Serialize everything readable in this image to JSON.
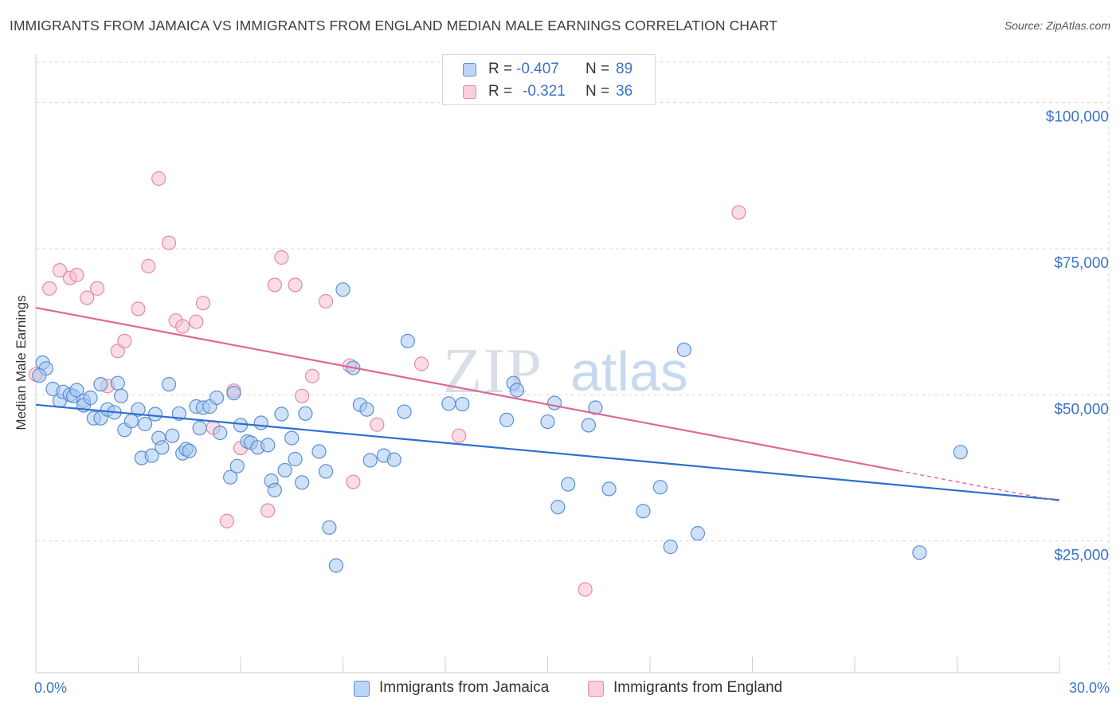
{
  "title": "IMMIGRANTS FROM JAMAICA VS IMMIGRANTS FROM ENGLAND MEDIAN MALE EARNINGS CORRELATION CHART",
  "source": "Source: ZipAtlas.com",
  "watermark": {
    "zip": "ZIP",
    "atlas": "atlas"
  },
  "legend": {
    "r_label": "R =",
    "n_label": "N =",
    "rows": [
      {
        "r": "-0.407",
        "n": "89"
      },
      {
        "r": "-0.321",
        "n": "36"
      }
    ]
  },
  "colors": {
    "blue_fill": "#a8c8f0",
    "blue_stroke": "#5b8fd6",
    "blue_line": "#2e6fd0",
    "pink_fill": "#f6bfd0",
    "pink_stroke": "#e58aa6",
    "pink_line": "#e06890",
    "axis_text": "#3b73c8",
    "grid": "#d8d8d8"
  },
  "chart_data": {
    "type": "scatter",
    "title": "IMMIGRANTS FROM JAMAICA VS IMMIGRANTS FROM ENGLAND MEDIAN MALE EARNINGS CORRELATION CHART",
    "xlabel": "",
    "ylabel": "Median Male Earnings",
    "xlim": [
      0,
      30
    ],
    "ylim": [
      3000,
      108000
    ],
    "x_tick_labels": [
      "0.0%",
      "30.0%"
    ],
    "y_ticks": [
      25000,
      50000,
      75000,
      100000
    ],
    "y_tick_labels": [
      "$25,000",
      "$50,000",
      "$75,000",
      "$100,000"
    ],
    "grid": true,
    "series": [
      {
        "name": "Immigrants from Jamaica",
        "color": "blue",
        "trend": {
          "x": [
            0,
            30
          ],
          "y": [
            48300,
            32000
          ]
        },
        "points": [
          [
            0.2,
            55500
          ],
          [
            0.3,
            54500
          ],
          [
            0.5,
            51000
          ],
          [
            0.7,
            49000
          ],
          [
            0.8,
            50500
          ],
          [
            1.0,
            50000
          ],
          [
            1.1,
            49800
          ],
          [
            1.2,
            50800
          ],
          [
            1.4,
            49000
          ],
          [
            1.4,
            48200
          ],
          [
            1.6,
            49500
          ],
          [
            1.7,
            46000
          ],
          [
            1.9,
            46000
          ],
          [
            1.9,
            51800
          ],
          [
            2.1,
            47500
          ],
          [
            2.3,
            47000
          ],
          [
            2.4,
            52000
          ],
          [
            2.5,
            49800
          ],
          [
            2.6,
            44000
          ],
          [
            2.8,
            45500
          ],
          [
            3.0,
            47500
          ],
          [
            3.1,
            39200
          ],
          [
            3.2,
            45000
          ],
          [
            3.4,
            39600
          ],
          [
            3.5,
            46700
          ],
          [
            3.6,
            42600
          ],
          [
            3.7,
            41000
          ],
          [
            3.9,
            51800
          ],
          [
            4.0,
            43000
          ],
          [
            4.2,
            46800
          ],
          [
            4.3,
            40000
          ],
          [
            4.4,
            40700
          ],
          [
            4.5,
            40400
          ],
          [
            4.7,
            48000
          ],
          [
            4.8,
            44300
          ],
          [
            4.9,
            47800
          ],
          [
            5.1,
            48000
          ],
          [
            5.3,
            49500
          ],
          [
            5.4,
            43500
          ],
          [
            5.7,
            35900
          ],
          [
            5.8,
            50300
          ],
          [
            5.9,
            37800
          ],
          [
            6.0,
            44800
          ],
          [
            6.2,
            42000
          ],
          [
            6.3,
            41800
          ],
          [
            6.5,
            41000
          ],
          [
            6.6,
            45200
          ],
          [
            6.8,
            41400
          ],
          [
            6.9,
            35300
          ],
          [
            7.0,
            33700
          ],
          [
            7.2,
            46700
          ],
          [
            7.3,
            37100
          ],
          [
            7.5,
            42600
          ],
          [
            7.6,
            39000
          ],
          [
            7.8,
            35000
          ],
          [
            7.9,
            46800
          ],
          [
            8.3,
            40300
          ],
          [
            8.5,
            36900
          ],
          [
            8.6,
            27300
          ],
          [
            8.8,
            20800
          ],
          [
            9.0,
            68000
          ],
          [
            9.3,
            54600
          ],
          [
            9.5,
            48300
          ],
          [
            9.7,
            47500
          ],
          [
            9.8,
            38800
          ],
          [
            10.2,
            39600
          ],
          [
            10.5,
            38900
          ],
          [
            10.8,
            47100
          ],
          [
            10.9,
            59200
          ],
          [
            12.1,
            48500
          ],
          [
            12.5,
            48400
          ],
          [
            13.8,
            45700
          ],
          [
            14.0,
            52000
          ],
          [
            14.1,
            50800
          ],
          [
            15.0,
            45400
          ],
          [
            15.2,
            48600
          ],
          [
            15.3,
            30800
          ],
          [
            15.6,
            34700
          ],
          [
            16.2,
            44800
          ],
          [
            16.4,
            47800
          ],
          [
            16.8,
            33900
          ],
          [
            17.8,
            30100
          ],
          [
            18.3,
            34200
          ],
          [
            18.6,
            24000
          ],
          [
            19.0,
            57700
          ],
          [
            19.4,
            26300
          ],
          [
            25.9,
            23000
          ],
          [
            27.1,
            40200
          ],
          [
            0.1,
            53300
          ]
        ]
      },
      {
        "name": "Immigrants from England",
        "color": "pink",
        "trend": {
          "x": [
            0,
            25.3
          ],
          "y": [
            64900,
            37000
          ]
        },
        "trend_dashed": {
          "x": [
            25.3,
            30
          ],
          "y": [
            37000,
            31800
          ]
        },
        "points": [
          [
            0.0,
            53500
          ],
          [
            0.4,
            68200
          ],
          [
            0.7,
            71300
          ],
          [
            1.0,
            70000
          ],
          [
            1.2,
            70500
          ],
          [
            1.5,
            66600
          ],
          [
            1.8,
            68200
          ],
          [
            2.1,
            51500
          ],
          [
            2.4,
            57500
          ],
          [
            2.6,
            59200
          ],
          [
            3.0,
            64700
          ],
          [
            3.3,
            72000
          ],
          [
            3.6,
            87000
          ],
          [
            3.9,
            76000
          ],
          [
            4.1,
            62700
          ],
          [
            4.3,
            61700
          ],
          [
            4.7,
            62500
          ],
          [
            4.9,
            65700
          ],
          [
            5.2,
            44400
          ],
          [
            5.6,
            28400
          ],
          [
            5.8,
            50700
          ],
          [
            6.0,
            40900
          ],
          [
            6.8,
            30200
          ],
          [
            7.0,
            68800
          ],
          [
            7.2,
            73500
          ],
          [
            7.6,
            68800
          ],
          [
            7.8,
            49800
          ],
          [
            8.1,
            53200
          ],
          [
            8.5,
            66000
          ],
          [
            9.2,
            55000
          ],
          [
            9.3,
            35100
          ],
          [
            10.0,
            44900
          ],
          [
            11.3,
            55300
          ],
          [
            12.4,
            43000
          ],
          [
            16.1,
            16700
          ],
          [
            20.6,
            81200
          ]
        ]
      }
    ]
  },
  "bottom_legend": [
    "Immigrants from Jamaica",
    "Immigrants from England"
  ]
}
